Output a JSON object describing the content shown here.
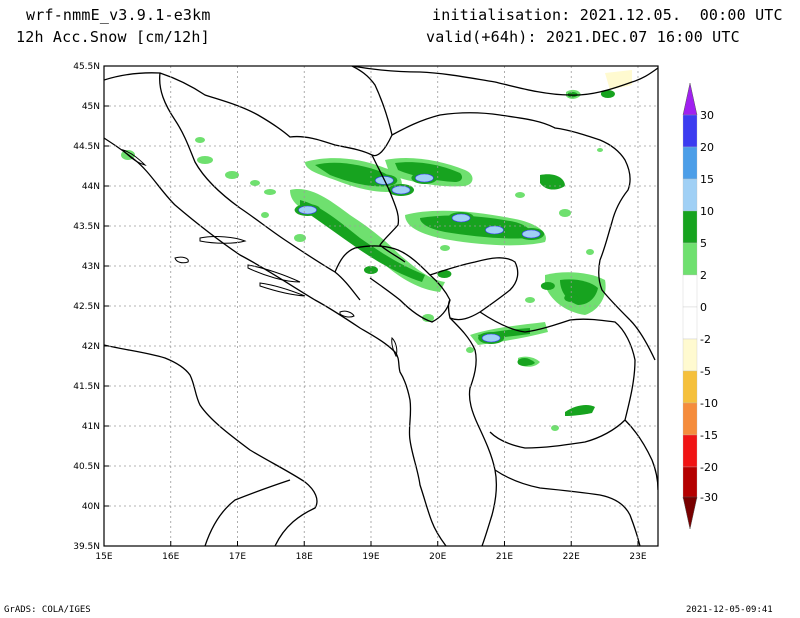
{
  "header": {
    "model_name": "wrf-nmmE_v3.9.1-e3km",
    "field_name": "12h Acc.Snow [cm/12h]",
    "initialisation": "initialisation: 2021.12.05.  00:00 UTC",
    "valid": "valid(+64h): 2021.DEC.07 16:00 UTC"
  },
  "map": {
    "lon_range": [
      15,
      23.3
    ],
    "lat_range": [
      39.5,
      45.5
    ],
    "lon_ticks": [
      {
        "value": 15,
        "label": "15E"
      },
      {
        "value": 16,
        "label": "16E"
      },
      {
        "value": 17,
        "label": "17E"
      },
      {
        "value": 18,
        "label": "18E"
      },
      {
        "value": 19,
        "label": "19E"
      },
      {
        "value": 20,
        "label": "20E"
      },
      {
        "value": 21,
        "label": "21E"
      },
      {
        "value": 22,
        "label": "22E"
      },
      {
        "value": 23,
        "label": "23E"
      }
    ],
    "lat_ticks": [
      {
        "value": 39.5,
        "label": "39.5N"
      },
      {
        "value": 40,
        "label": "40N"
      },
      {
        "value": 40.5,
        "label": "40.5N"
      },
      {
        "value": 41,
        "label": "41N"
      },
      {
        "value": 41.5,
        "label": "41.5N"
      },
      {
        "value": 42,
        "label": "42N"
      },
      {
        "value": 42.5,
        "label": "42.5N"
      },
      {
        "value": 43,
        "label": "43N"
      },
      {
        "value": 43.5,
        "label": "43.5N"
      },
      {
        "value": 44,
        "label": "44N"
      },
      {
        "value": 44.5,
        "label": "44.5N"
      },
      {
        "value": 45,
        "label": "45N"
      },
      {
        "value": 45.5,
        "label": "45.5N"
      }
    ],
    "grid": true
  },
  "legend": {
    "bins": [
      {
        "from": 20,
        "to": 30,
        "color": "#3c3cf0"
      },
      {
        "from": 15,
        "to": 20,
        "color": "#4c9ee8"
      },
      {
        "from": 10,
        "to": 15,
        "color": "#a0d0f5"
      },
      {
        "from": 5,
        "to": 10,
        "color": "#17a31f"
      },
      {
        "from": 2,
        "to": 5,
        "color": "#6fe06f"
      },
      {
        "from": 0,
        "to": 2,
        "color": "#ffffff"
      },
      {
        "from": -2,
        "to": 0,
        "color": "#ffffff"
      },
      {
        "from": -5,
        "to": -2,
        "color": "#fffad0"
      },
      {
        "from": -10,
        "to": -5,
        "color": "#f5c03c"
      },
      {
        "from": -15,
        "to": -10,
        "color": "#f58c3c"
      },
      {
        "from": -20,
        "to": -15,
        "color": "#f01414"
      },
      {
        "from": -30,
        "to": -20,
        "color": "#b40000"
      }
    ],
    "above_max_color": "#a020f0",
    "below_min_color": "#780000",
    "labels": [
      "30",
      "20",
      "15",
      "10",
      "5",
      "2",
      "0",
      "-2",
      "-5",
      "-10",
      "-15",
      "-20",
      "-30"
    ]
  },
  "snow_areas": [
    {
      "lon": 19.2,
      "lat": 44.07,
      "level": 3
    },
    {
      "lon": 19.8,
      "lat": 44.1,
      "level": 3
    },
    {
      "lon": 20.35,
      "lat": 43.6,
      "level": 3
    },
    {
      "lon": 20.85,
      "lat": 43.45,
      "level": 3
    },
    {
      "lon": 21.4,
      "lat": 43.4,
      "level": 3
    },
    {
      "lon": 18.05,
      "lat": 43.7,
      "level": 3
    },
    {
      "lon": 19.45,
      "lat": 43.95,
      "level": 3
    },
    {
      "lon": 20.8,
      "lat": 42.1,
      "level": 3
    },
    {
      "lon": 22.2,
      "lat": 41.2,
      "level": 2
    },
    {
      "lon": 21.3,
      "lat": 41.8,
      "level": 2
    },
    {
      "lon": 21.65,
      "lat": 42.75,
      "level": 2
    },
    {
      "lon": 22.0,
      "lat": 42.6,
      "level": 2
    },
    {
      "lon": 22.55,
      "lat": 45.15,
      "level": 2
    },
    {
      "lon": 19.0,
      "lat": 42.95,
      "level": 2
    },
    {
      "lon": 20.1,
      "lat": 42.9,
      "level": 2
    }
  ]
}
